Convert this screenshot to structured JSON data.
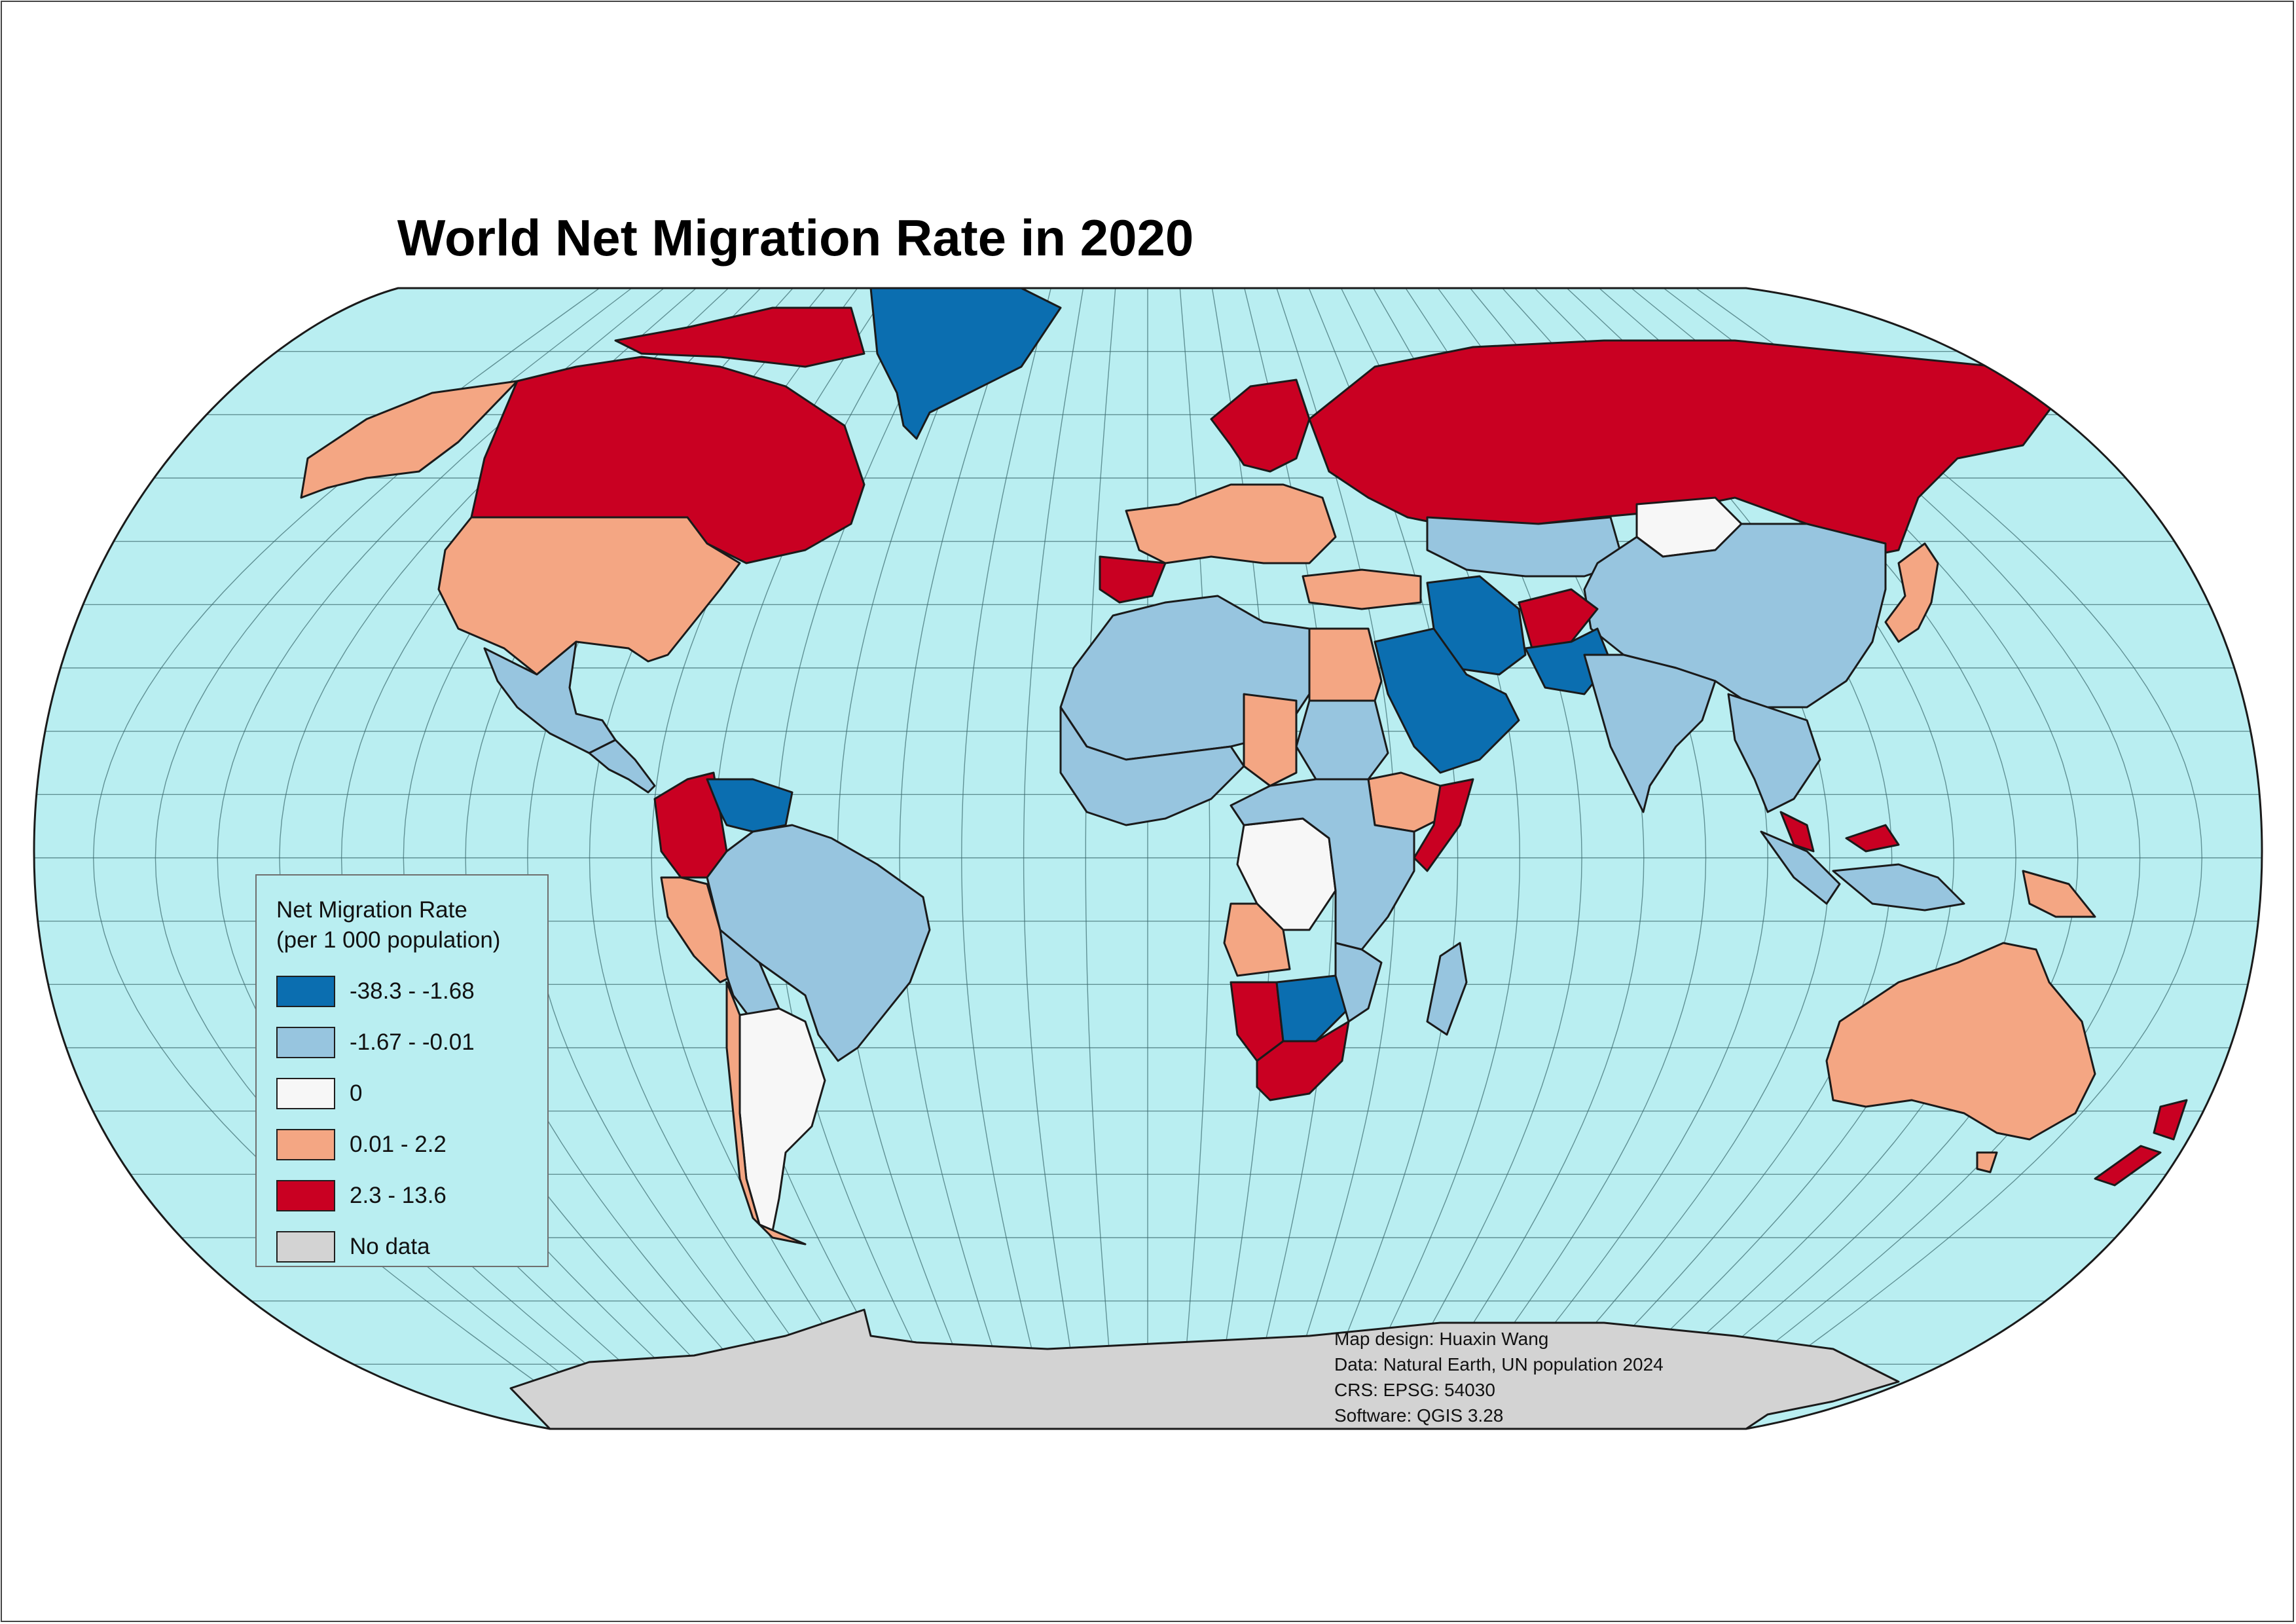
{
  "title": "World Net Migration Rate in 2020",
  "legend": {
    "title_line1": "Net Migration Rate",
    "title_line2": "(per 1 000 population)",
    "items": [
      {
        "label": "-38.3 - -1.68",
        "color": "#0b6eb0"
      },
      {
        "label": "-1.67 - -0.01",
        "color": "#97c5df"
      },
      {
        "label": "0",
        "color": "#f7f7f7"
      },
      {
        "label": "0.01 - 2.2",
        "color": "#f4a683"
      },
      {
        "label": "2.3 - 13.6",
        "color": "#c90022"
      },
      {
        "label": "No data",
        "color": "#d3d3d3"
      }
    ]
  },
  "credits": {
    "design": "Map design: Huaxin Wang",
    "data": "Data: Natural Earth, UN population 2024",
    "crs": "CRS: EPSG: 54030",
    "software": "Software: QGIS 3.28"
  },
  "colors": {
    "ocean": "#b9eef1",
    "graticule": "#3b6a6e",
    "border": "#1a1a1a"
  },
  "regions": [
    {
      "name": "Canada",
      "class": "2.3 - 13.6"
    },
    {
      "name": "United States",
      "class": "0.01 - 2.2"
    },
    {
      "name": "Alaska",
      "class": "0.01 - 2.2"
    },
    {
      "name": "Greenland",
      "class": "-38.3 - -1.68"
    },
    {
      "name": "Mexico",
      "class": "-1.67 - -0.01"
    },
    {
      "name": "Central America",
      "class": "-1.67 - -0.01"
    },
    {
      "name": "Colombia",
      "class": "2.3 - 13.6"
    },
    {
      "name": "Venezuela",
      "class": "-38.3 - -1.68"
    },
    {
      "name": "Brazil",
      "class": "-1.67 - -0.01"
    },
    {
      "name": "Peru",
      "class": "0.01 - 2.2"
    },
    {
      "name": "Bolivia",
      "class": "-1.67 - -0.01"
    },
    {
      "name": "Argentina",
      "class": "0"
    },
    {
      "name": "Chile",
      "class": "0.01 - 2.2"
    },
    {
      "name": "Russia",
      "class": "2.3 - 13.6"
    },
    {
      "name": "Kazakhstan",
      "class": "-1.67 - -0.01"
    },
    {
      "name": "Mongolia",
      "class": "0"
    },
    {
      "name": "China",
      "class": "-1.67 - -0.01"
    },
    {
      "name": "India",
      "class": "-1.67 - -0.01"
    },
    {
      "name": "Iran",
      "class": "-38.3 - -1.68"
    },
    {
      "name": "Afghanistan",
      "class": "2.3 - 13.6"
    },
    {
      "name": "Saudi Arabia",
      "class": "-38.3 - -1.68"
    },
    {
      "name": "Scandinavia",
      "class": "2.3 - 13.6"
    },
    {
      "name": "Western Europe",
      "class": "0.01 - 2.2"
    },
    {
      "name": "Spain",
      "class": "2.3 - 13.6"
    },
    {
      "name": "North Africa",
      "class": "-1.67 - -0.01"
    },
    {
      "name": "Egypt",
      "class": "0.01 - 2.2"
    },
    {
      "name": "Sudan",
      "class": "-1.67 - -0.01"
    },
    {
      "name": "Chad",
      "class": "0.01 - 2.2"
    },
    {
      "name": "DR Congo",
      "class": "0"
    },
    {
      "name": "Angola",
      "class": "0.01 - 2.2"
    },
    {
      "name": "Namibia",
      "class": "2.3 - 13.6"
    },
    {
      "name": "South Africa",
      "class": "2.3 - 13.6"
    },
    {
      "name": "Botswana",
      "class": "-38.3 - -1.68"
    },
    {
      "name": "Kenya",
      "class": "-1.67 - -0.01"
    },
    {
      "name": "Somalia",
      "class": "2.3 - 13.6"
    },
    {
      "name": "Ethiopia",
      "class": "0.01 - 2.2"
    },
    {
      "name": "Madagascar",
      "class": "-1.67 - -0.01"
    },
    {
      "name": "Japan",
      "class": "0.01 - 2.2"
    },
    {
      "name": "Indonesia",
      "class": "-1.67 - -0.01"
    },
    {
      "name": "Malaysia",
      "class": "2.3 - 13.6"
    },
    {
      "name": "Papua New Guinea",
      "class": "0.01 - 2.2"
    },
    {
      "name": "Australia",
      "class": "0.01 - 2.2"
    },
    {
      "name": "New Zealand",
      "class": "2.3 - 13.6"
    },
    {
      "name": "Antarctica",
      "class": "No data"
    }
  ]
}
